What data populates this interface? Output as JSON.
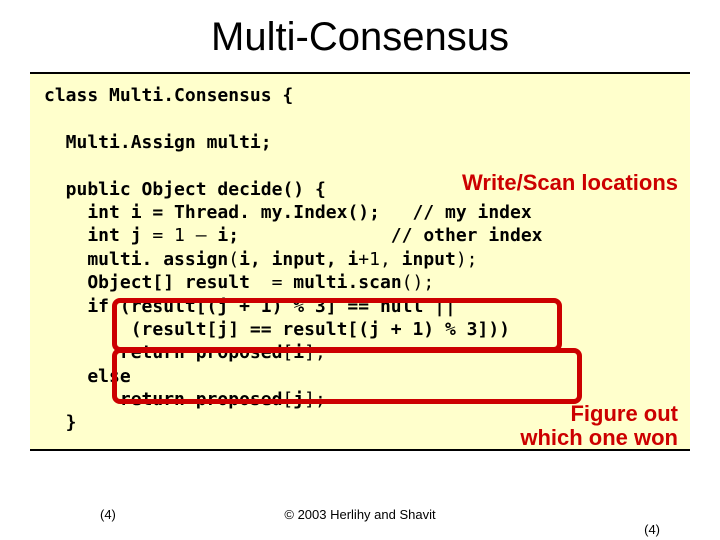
{
  "title": "Multi-Consensus",
  "code": {
    "l1a": "class ",
    "l1b": "Multi.Consensus",
    "l1c": " {",
    "l2a": "  Multi.Assign ",
    "l2b": "multi",
    "l2c": ";",
    "l3a": "  public ",
    "l3b": "Object decide",
    "l3c": "() {",
    "l4a": "    int ",
    "l4b": "i = Thread. my.Index",
    "l4c": "();   // my index",
    "l5a": "    int ",
    "l5b": "j",
    "l5c": " = 1 – ",
    "l5d": "i",
    "l5e": ";              // other index",
    "l6a": "    multi. assign",
    "l6b": "(",
    "l6c": "i, input, i",
    "l6d": "+1, ",
    "l6e": "input",
    "l6f": ");",
    "l7a": "    Object[] ",
    "l7b": "result",
    "l7c": "  = ",
    "l7d": "multi.scan",
    "l7e": "();",
    "l8": "    if (result[(j + 1) % 3] == null ||",
    "l9": "        (result[j] == result[(j + 1) % 3]))",
    "l10a": "       return ",
    "l10b": "proposed",
    "l10c": "[",
    "l10d": "i",
    "l10e": "];",
    "l11": "    else",
    "l12a": "       return ",
    "l12b": "proposed",
    "l12c": "[",
    "l12d": "j",
    "l12e": "];",
    "l13": "  }"
  },
  "annotations": {
    "note1": "Write/Scan locations",
    "note2a": "Figure out",
    "note2b": "which one won"
  },
  "annotation_styles": {
    "color": "#cc0000",
    "border_color": "#cc0000",
    "border_width": 5,
    "border_radius": 8
  },
  "footer": {
    "left": "(4)",
    "center": "© 2003 Herlihy and Shavit",
    "right": "(4)"
  },
  "colors": {
    "code_background": "#ffffcc",
    "slide_background": "#ffffff",
    "text": "#000000"
  }
}
